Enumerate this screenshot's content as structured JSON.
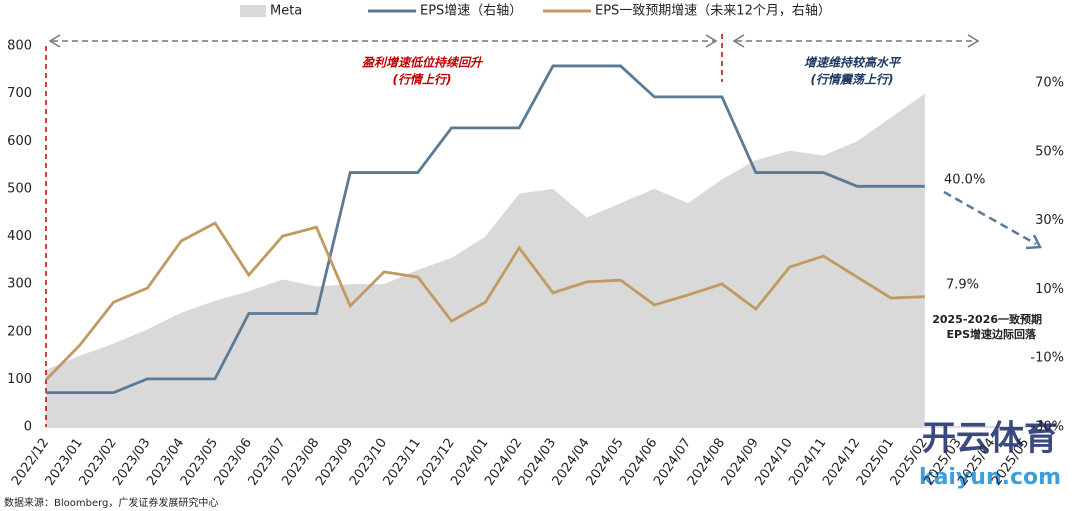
{
  "chart_data": {
    "type": "area-line",
    "legend": {
      "position": "top"
    },
    "categories": [
      "2022/12",
      "2023/01",
      "2023/02",
      "2023/03",
      "2023/04",
      "2023/05",
      "2023/06",
      "2023/07",
      "2023/08",
      "2023/09",
      "2023/10",
      "2023/11",
      "2023/12",
      "2024/01",
      "2024/02",
      "2024/03",
      "2024/04",
      "2024/05",
      "2024/06",
      "2024/07",
      "2024/08",
      "2024/09",
      "2024/10",
      "2024/11",
      "2024/12",
      "2025/01",
      "2025/02",
      "2025/03",
      "2025/04",
      "2025/05"
    ],
    "series": [
      {
        "name": "Meta",
        "type": "area",
        "color": "#d9d9d9",
        "axis": "y",
        "values": [
          120,
          150,
          175,
          205,
          240,
          265,
          285,
          310,
          295,
          300,
          300,
          330,
          355,
          400,
          490,
          500,
          440,
          470,
          500,
          470,
          520,
          560,
          580,
          570,
          600,
          650,
          700,
          null,
          null,
          null
        ]
      },
      {
        "name": "EPS增速（右轴）",
        "type": "line",
        "color": "#5b7a95",
        "axis": "y2",
        "values": [
          -20,
          -20,
          -20,
          -16,
          -16,
          -16,
          3,
          3,
          3,
          44,
          44,
          44,
          57,
          57,
          57,
          75,
          75,
          75,
          66,
          66,
          66,
          44,
          44,
          44,
          40,
          40,
          40,
          null,
          null,
          null
        ]
      },
      {
        "name": "EPS一致预期增速（未来12个月，右轴）",
        "type": "line",
        "color": "#c19a62",
        "axis": "y2",
        "values": [
          -16.3,
          -6.2,
          6.3,
          10.4,
          24.1,
          29.3,
          14.2,
          25.5,
          28.1,
          5.2,
          15.1,
          13.6,
          0.8,
          6.3,
          22.1,
          9,
          12.2,
          12.7,
          5.5,
          8.4,
          11.6,
          4.3,
          16.5,
          19.7,
          13.6,
          7.5,
          7.9,
          null,
          null,
          null
        ]
      }
    ],
    "ylim": [
      0,
      800
    ],
    "yticks": [
      0,
      100,
      200,
      300,
      400,
      500,
      600,
      700,
      800
    ],
    "y2lim": [
      -30,
      80.8
    ],
    "y2ticks": [
      {
        "value": -30,
        "label": "-30%"
      },
      {
        "value": -10,
        "label": "-10%"
      },
      {
        "value": 10,
        "label": "10%"
      },
      {
        "value": 30,
        "label": "30%"
      },
      {
        "value": 50,
        "label": "50%"
      },
      {
        "value": 70,
        "label": "70%"
      }
    ],
    "annotations": {
      "phase1": "盈利增速低位持续回升",
      "phase1_sub": "(行情上行)",
      "phase2": "增速维持较高水平",
      "phase2_sub": "(行情震荡上行)",
      "eps_last": "40.0%",
      "cons_last": "7.9%",
      "outlook1": "2025-2026一致预期",
      "outlook2": "EPS增速边际回落"
    },
    "source": "数据来源：Bloomberg，广发证券发展研究中心",
    "watermark": [
      "开云体育",
      "kaiyun.com"
    ]
  }
}
